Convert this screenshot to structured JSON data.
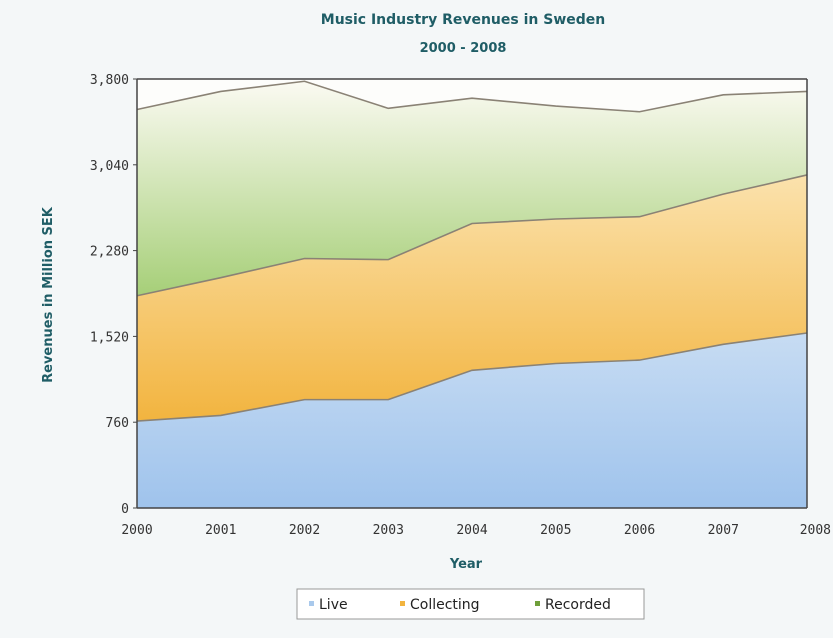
{
  "chart_data": {
    "type": "area",
    "stacked": true,
    "title": "Music Industry Revenues in Sweden",
    "subtitle": "2000 - 2008",
    "xlabel": "Year",
    "ylabel": "Revenues in Million SEK",
    "x": [
      "2000",
      "2001",
      "2002",
      "2003",
      "2004",
      "2005",
      "2006",
      "2007",
      "2008"
    ],
    "ylim": [
      0,
      3800
    ],
    "yticks": [
      "0",
      "760",
      "1,520",
      "2,280",
      "3,040",
      "3,800"
    ],
    "ytick_values": [
      0,
      760,
      1520,
      2280,
      3040,
      3800
    ],
    "legend_position": "bottom",
    "series": [
      {
        "name": "Live",
        "values": [
          770,
          820,
          960,
          960,
          1220,
          1280,
          1310,
          1450,
          1550
        ],
        "color": "#a9c9ec"
      },
      {
        "name": "Collecting",
        "values": [
          1110,
          1220,
          1250,
          1240,
          1300,
          1280,
          1270,
          1330,
          1400
        ],
        "color": "#f3c25e"
      },
      {
        "name": "Recorded",
        "values": [
          1650,
          1650,
          1570,
          1340,
          1110,
          1000,
          930,
          880,
          740
        ],
        "color": "#b9d88e"
      }
    ]
  }
}
